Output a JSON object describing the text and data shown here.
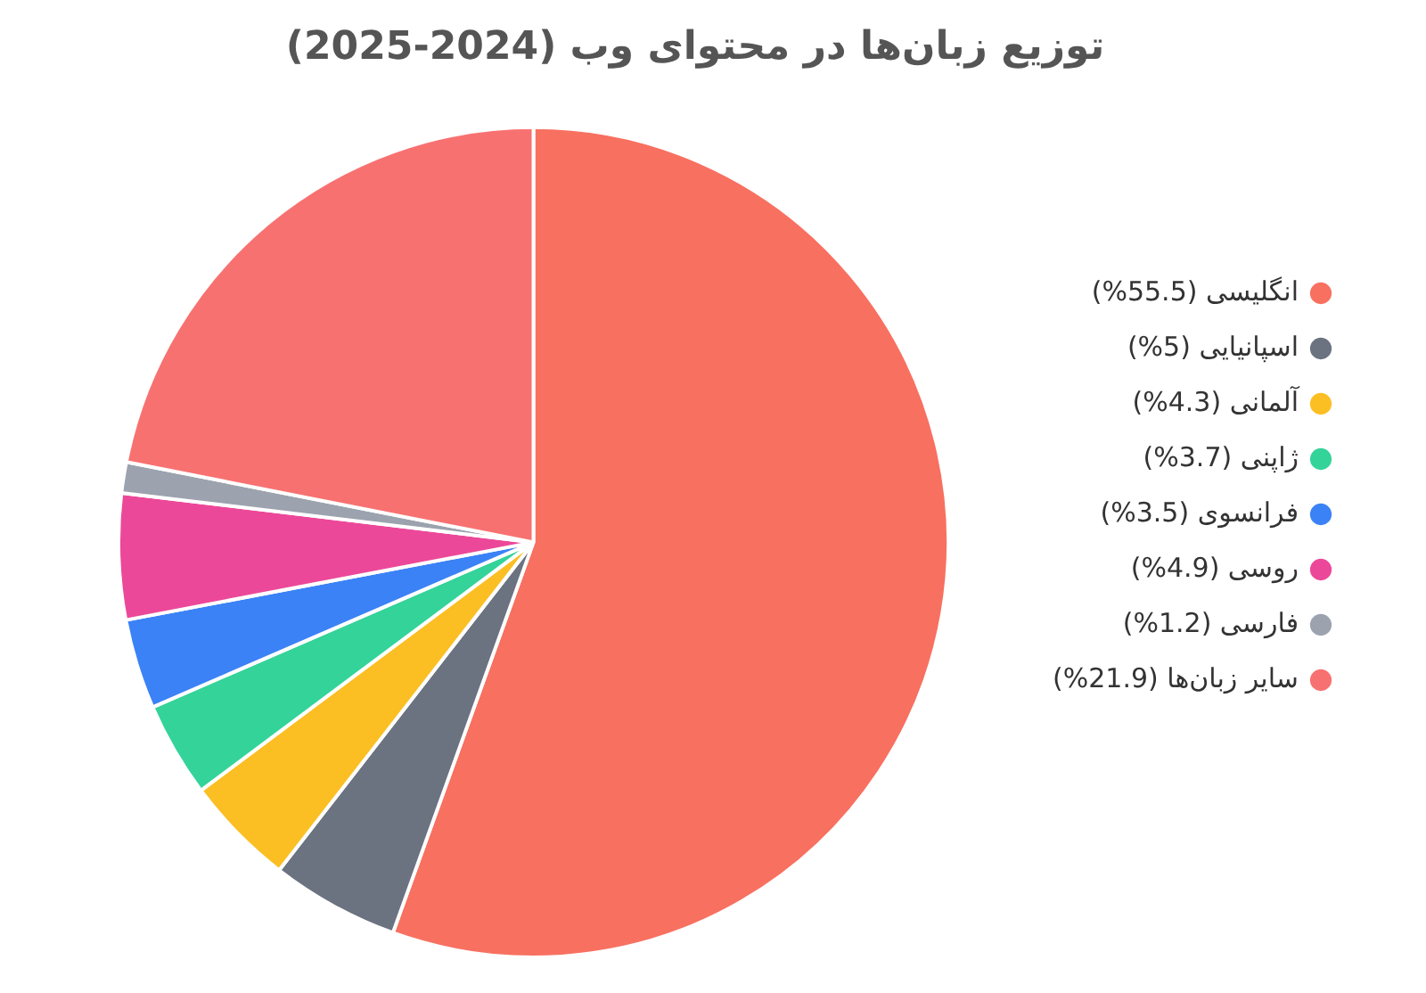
{
  "chart_data": {
    "type": "pie",
    "title": "توزیع زبان‌ها در محتوای وب (2024-2025)",
    "categories": [
      "انگلیسی (55.5%)",
      "اسپانیایی (5%)",
      "آلمانی (4.3%)",
      "ژاپنی (3.7%)",
      "فرانسوی (3.5%)",
      "روسی (4.9%)",
      "فارسی (1.2%)",
      "سایر زبان‌ها (21.9%)"
    ],
    "values": [
      55.5,
      5,
      4.3,
      3.7,
      3.5,
      4.9,
      1.2,
      21.9
    ],
    "colors": [
      "#f87060",
      "#6b7280",
      "#fbbf24",
      "#34d399",
      "#3b82f6",
      "#ec4899",
      "#9ca3af",
      "#f87171"
    ],
    "legend": "right"
  }
}
